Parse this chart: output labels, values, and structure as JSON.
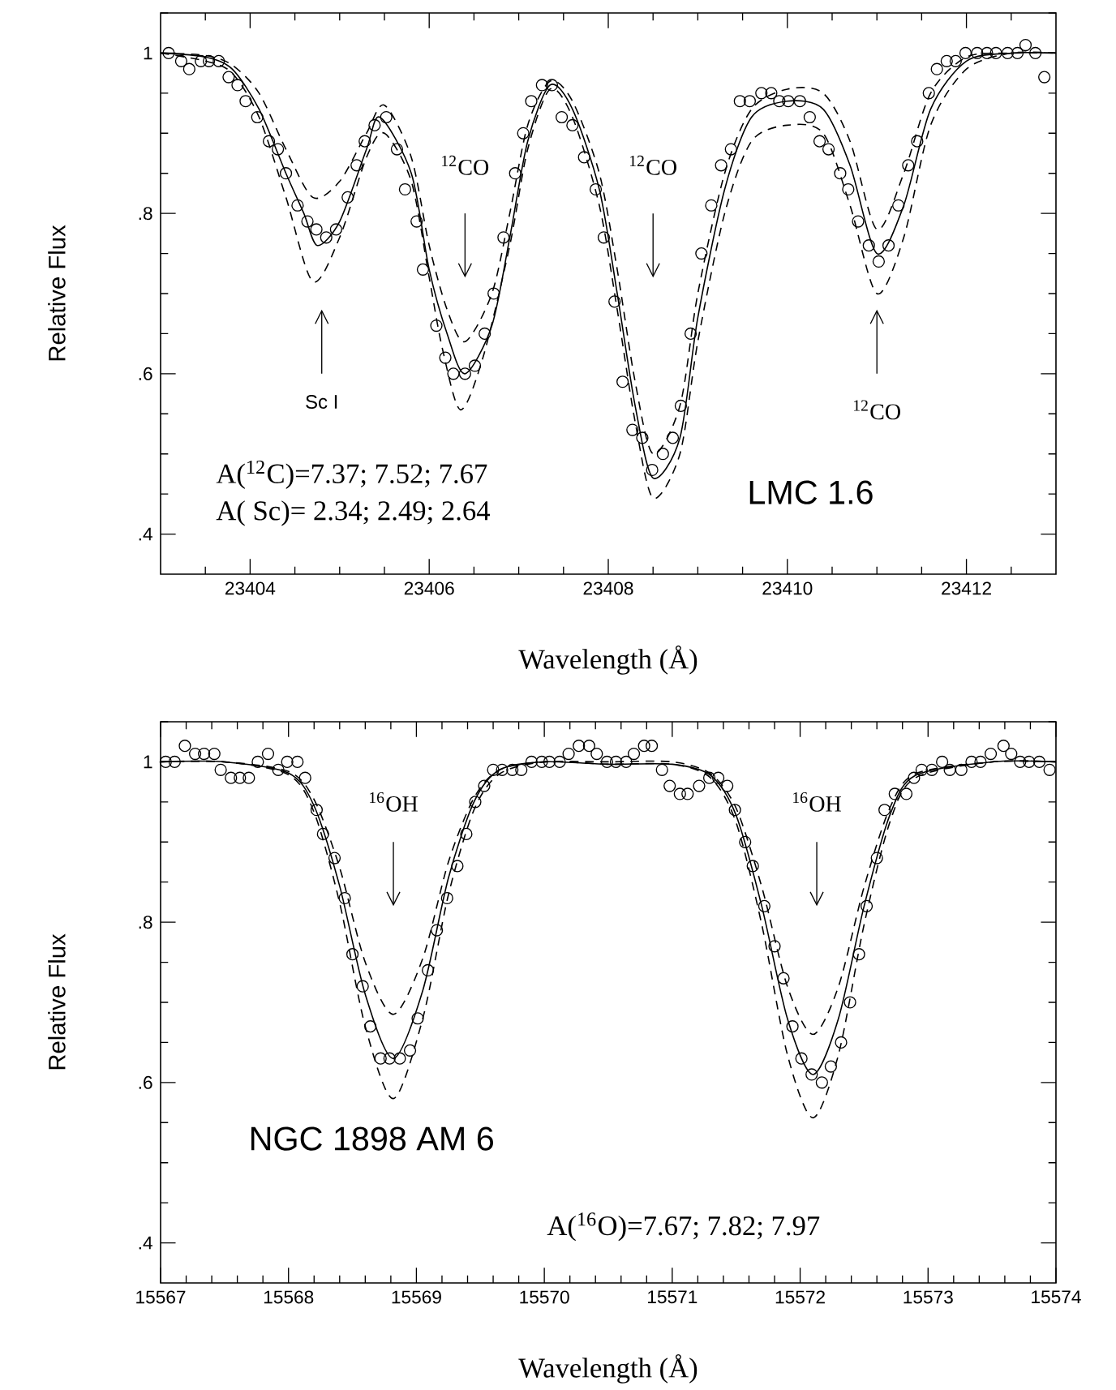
{
  "chart_data": [
    {
      "type": "scatter",
      "xlabel": "Wavelength (Å)",
      "ylabel": "Relative Flux",
      "xlim": [
        23403,
        23413
      ],
      "ylim": [
        0.35,
        1.05
      ],
      "xticks": [
        {
          "value": 23403.5,
          "label": null
        },
        23404,
        {
          "value": 23404.5,
          "label": null
        },
        {
          "value": 23405,
          "label": null
        },
        {
          "value": 23405.5,
          "label": null
        },
        23406,
        {
          "value": 23406.5,
          "label": null
        },
        {
          "value": 23407,
          "label": null
        },
        {
          "value": 23407.5,
          "label": null
        },
        23408,
        {
          "value": 23408.5,
          "label": null
        },
        {
          "value": 23409,
          "label": null
        },
        {
          "value": 23409.5,
          "label": null
        },
        23410,
        {
          "value": 23410.5,
          "label": null
        },
        {
          "value": 23411,
          "label": null
        },
        {
          "value": 23411.5,
          "label": null
        },
        23412,
        {
          "value": 23412.5,
          "label": null
        }
      ],
      "yticks": [
        {
          "value": 0.4,
          "label": ".4"
        },
        {
          "value": 0.45,
          "label": null
        },
        {
          "value": 0.5,
          "label": null
        },
        {
          "value": 0.55,
          "label": null
        },
        {
          "value": 0.6,
          "label": ".6"
        },
        {
          "value": 0.65,
          "label": null
        },
        {
          "value": 0.7,
          "label": null
        },
        {
          "value": 0.75,
          "label": null
        },
        {
          "value": 0.8,
          "label": ".8"
        },
        {
          "value": 0.85,
          "label": null
        },
        {
          "value": 0.9,
          "label": null
        },
        {
          "value": 0.95,
          "label": null
        },
        1,
        {
          "value": 1.05,
          "label": null
        }
      ],
      "annotations": [
        "Sc I",
        "$^{12}$CO",
        "$^{12}$CO",
        "$^{12}$CO",
        "A($^{12}$C)=7.37;  7.52;  7.67",
        "A( Sc)=  2.34;  2.49;  2.64",
        "LMC 1.6"
      ],
      "series": [
        {
          "marker": "circle",
          "color": "#000000",
          "x": [
            23403.09,
            23403.23,
            23403.32,
            23403.45,
            23403.54,
            23403.65,
            23403.76,
            23403.86,
            23403.95,
            23404.08,
            23404.21,
            23404.31,
            23404.4,
            23404.53,
            23404.64,
            23404.74,
            23404.85,
            23404.96,
            23405.09,
            23405.19,
            23405.28,
            23405.39,
            23405.52,
            23405.64,
            23405.73,
            23405.86,
            23405.93,
            23406.08,
            23406.18,
            23406.27,
            23406.4,
            23406.51,
            23406.62,
            23406.72,
            23406.83,
            23406.96,
            23407.05,
            23407.14,
            23407.26,
            23407.37,
            23407.48,
            23407.6,
            23407.73,
            23407.86,
            23407.95,
            23408.07,
            23408.16,
            23408.27,
            23408.38,
            23408.49,
            23408.61,
            23408.72,
            23408.81,
            23408.92,
            23409.04,
            23409.15,
            23409.26,
            23409.37,
            23409.47,
            23409.58,
            23409.71,
            23409.82,
            23409.91,
            23410.01,
            23410.14,
            23410.25,
            23410.36,
            23410.46,
            23410.59,
            23410.68,
            23410.79,
            23410.91,
            23411.02,
            23411.13,
            23411.24,
            23411.35,
            23411.45,
            23411.58,
            23411.67,
            23411.78,
            23411.88,
            23411.99,
            23412.12,
            23412.23,
            23412.33,
            23412.46,
            23412.57,
            23412.66,
            23412.77,
            23412.87
          ],
          "values": [
            1.0,
            0.99,
            0.98,
            0.99,
            0.99,
            0.99,
            0.97,
            0.96,
            0.94,
            0.92,
            0.89,
            0.88,
            0.85,
            0.81,
            0.79,
            0.78,
            0.77,
            0.78,
            0.82,
            0.86,
            0.89,
            0.91,
            0.92,
            0.88,
            0.83,
            0.79,
            0.73,
            0.66,
            0.62,
            0.6,
            0.6,
            0.61,
            0.65,
            0.7,
            0.77,
            0.85,
            0.9,
            0.94,
            0.96,
            0.96,
            0.92,
            0.91,
            0.87,
            0.83,
            0.77,
            0.69,
            0.59,
            0.53,
            0.52,
            0.48,
            0.5,
            0.52,
            0.56,
            0.65,
            0.75,
            0.81,
            0.86,
            0.88,
            0.94,
            0.94,
            0.95,
            0.95,
            0.94,
            0.94,
            0.94,
            0.92,
            0.89,
            0.88,
            0.85,
            0.83,
            0.79,
            0.76,
            0.74,
            0.76,
            0.81,
            0.86,
            0.89,
            0.95,
            0.98,
            0.99,
            0.99,
            1.0,
            1.0,
            1.0,
            1.0,
            1.0,
            1.0,
            1.01,
            1.0,
            0.97
          ]
        },
        {
          "type": "line",
          "line_style": "solid",
          "color": "#000000",
          "x": [
            23403,
            23403.5,
            23403.8,
            23404.1,
            23404.4,
            23404.6,
            23404.75,
            23405.0,
            23405.3,
            23405.45,
            23405.8,
            23406.0,
            23406.2,
            23406.4,
            23406.7,
            23406.9,
            23407.1,
            23407.35,
            23407.6,
            23407.9,
            23408.1,
            23408.3,
            23408.5,
            23408.8,
            23409.0,
            23409.3,
            23409.6,
            23410.0,
            23410.4,
            23410.7,
            23411.0,
            23411.3,
            23411.6,
            23412.0,
            23412.5,
            23413
          ],
          "values": [
            1.0,
            0.995,
            0.98,
            0.93,
            0.85,
            0.8,
            0.76,
            0.79,
            0.88,
            0.92,
            0.85,
            0.73,
            0.65,
            0.6,
            0.66,
            0.77,
            0.89,
            0.96,
            0.93,
            0.83,
            0.7,
            0.56,
            0.47,
            0.52,
            0.67,
            0.83,
            0.92,
            0.94,
            0.93,
            0.86,
            0.75,
            0.81,
            0.93,
            0.99,
            1.0,
            1.0
          ]
        },
        {
          "type": "line",
          "line_style": "dashed",
          "color": "#000000",
          "x": [
            23403,
            23403.5,
            23403.8,
            23404.1,
            23404.4,
            23404.7,
            23405.0,
            23405.3,
            23405.5,
            23405.8,
            23406.0,
            23406.15,
            23406.35,
            23406.6,
            23406.9,
            23407.1,
            23407.35,
            23407.6,
            23407.9,
            23408.1,
            23408.3,
            23408.5,
            23408.8,
            23409.0,
            23409.3,
            23409.6,
            23410.0,
            23410.4,
            23410.7,
            23411.0,
            23411.3,
            23411.6,
            23412.0,
            23412.5,
            23413
          ],
          "values": [
            1.0,
            0.99,
            0.975,
            0.92,
            0.82,
            0.715,
            0.77,
            0.87,
            0.9,
            0.84,
            0.72,
            0.63,
            0.555,
            0.62,
            0.76,
            0.88,
            0.955,
            0.92,
            0.81,
            0.68,
            0.54,
            0.445,
            0.5,
            0.64,
            0.8,
            0.89,
            0.91,
            0.9,
            0.81,
            0.7,
            0.77,
            0.91,
            0.98,
            1.0,
            1.0
          ]
        },
        {
          "type": "line",
          "line_style": "dashed",
          "color": "#000000",
          "x": [
            23403,
            23403.5,
            23403.8,
            23404.1,
            23404.4,
            23404.7,
            23405.0,
            23405.3,
            23405.5,
            23405.8,
            23406.0,
            23406.2,
            23406.4,
            23406.7,
            23406.9,
            23407.1,
            23407.35,
            23407.6,
            23407.9,
            23408.1,
            23408.3,
            23408.5,
            23408.8,
            23409.0,
            23409.3,
            23409.6,
            23410.0,
            23410.4,
            23410.7,
            23411.0,
            23411.3,
            23411.6,
            23412.0,
            23412.5,
            23413
          ],
          "values": [
            1.0,
            0.997,
            0.985,
            0.95,
            0.88,
            0.82,
            0.84,
            0.9,
            0.935,
            0.87,
            0.76,
            0.68,
            0.64,
            0.7,
            0.8,
            0.91,
            0.965,
            0.94,
            0.85,
            0.73,
            0.59,
            0.5,
            0.56,
            0.7,
            0.85,
            0.93,
            0.955,
            0.95,
            0.89,
            0.78,
            0.85,
            0.95,
            0.995,
            1.0,
            1.0
          ]
        }
      ]
    },
    {
      "type": "scatter",
      "xlabel": "Wavelength (Å)",
      "ylabel": "Relative Flux",
      "xlim": [
        15567,
        15574
      ],
      "ylim": [
        0.35,
        1.05
      ],
      "xticks": [
        15567,
        {
          "value": 15567.2,
          "label": null
        },
        {
          "value": 15567.4,
          "label": null
        },
        {
          "value": 15567.6,
          "label": null
        },
        {
          "value": 15567.8,
          "label": null
        },
        15568,
        {
          "value": 15568.2,
          "label": null
        },
        {
          "value": 15568.4,
          "label": null
        },
        {
          "value": 15568.6,
          "label": null
        },
        {
          "value": 15568.8,
          "label": null
        },
        15569,
        {
          "value": 15569.2,
          "label": null
        },
        {
          "value": 15569.4,
          "label": null
        },
        {
          "value": 15569.6,
          "label": null
        },
        {
          "value": 15569.8,
          "label": null
        },
        15570,
        {
          "value": 15570.2,
          "label": null
        },
        {
          "value": 15570.4,
          "label": null
        },
        {
          "value": 15570.6,
          "label": null
        },
        {
          "value": 15570.8,
          "label": null
        },
        15571,
        {
          "value": 15571.2,
          "label": null
        },
        {
          "value": 15571.4,
          "label": null
        },
        {
          "value": 15571.6,
          "label": null
        },
        {
          "value": 15571.8,
          "label": null
        },
        15572,
        {
          "value": 15572.2,
          "label": null
        },
        {
          "value": 15572.4,
          "label": null
        },
        {
          "value": 15572.6,
          "label": null
        },
        {
          "value": 15572.8,
          "label": null
        },
        15573,
        {
          "value": 15573.2,
          "label": null
        },
        {
          "value": 15573.4,
          "label": null
        },
        {
          "value": 15573.6,
          "label": null
        },
        {
          "value": 15573.8,
          "label": null
        },
        15574
      ],
      "yticks": [
        {
          "value": 0.4,
          "label": ".4"
        },
        {
          "value": 0.45,
          "label": null
        },
        {
          "value": 0.5,
          "label": null
        },
        {
          "value": 0.55,
          "label": null
        },
        {
          "value": 0.6,
          "label": ".6"
        },
        {
          "value": 0.65,
          "label": null
        },
        {
          "value": 0.7,
          "label": null
        },
        {
          "value": 0.75,
          "label": null
        },
        {
          "value": 0.8,
          "label": ".8"
        },
        {
          "value": 0.85,
          "label": null
        },
        {
          "value": 0.9,
          "label": null
        },
        {
          "value": 0.95,
          "label": null
        },
        1,
        {
          "value": 1.05,
          "label": null
        }
      ],
      "annotations": [
        "$^{16}$OH",
        "$^{16}$OH",
        "A($^{16}$O)=7.67;  7.82;  7.97",
        "NGC 1898 AM 6"
      ],
      "series": [
        {
          "marker": "circle",
          "color": "#000000",
          "x": [
            15567.04,
            15567.11,
            15567.19,
            15567.27,
            15567.34,
            15567.42,
            15567.47,
            15567.55,
            15567.62,
            15567.69,
            15567.76,
            15567.84,
            15567.92,
            15567.99,
            15568.07,
            15568.13,
            15568.22,
            15568.27,
            15568.36,
            15568.44,
            15568.5,
            15568.58,
            15568.64,
            15568.72,
            15568.79,
            15568.87,
            15568.95,
            15569.01,
            15569.09,
            15569.16,
            15569.24,
            15569.32,
            15569.39,
            15569.46,
            15569.53,
            15569.6,
            15569.67,
            15569.75,
            15569.82,
            15569.9,
            15569.98,
            15570.04,
            15570.12,
            15570.19,
            15570.27,
            15570.35,
            15570.41,
            15570.49,
            15570.56,
            15570.64,
            15570.7,
            15570.78,
            15570.84,
            15570.92,
            15570.98,
            15571.06,
            15571.12,
            15571.21,
            15571.29,
            15571.36,
            15571.43,
            15571.49,
            15571.57,
            15571.63,
            15571.72,
            15571.8,
            15571.87,
            15571.94,
            15572.01,
            15572.09,
            15572.17,
            15572.24,
            15572.32,
            15572.39,
            15572.46,
            15572.52,
            15572.6,
            15572.66,
            15572.74,
            15572.83,
            15572.89,
            15572.95,
            15573.03,
            15573.11,
            15573.17,
            15573.26,
            15573.34,
            15573.41,
            15573.49,
            15573.59,
            15573.65,
            15573.72,
            15573.79,
            15573.87,
            15573.95
          ],
          "values": [
            1.0,
            1.0,
            1.02,
            1.01,
            1.01,
            1.01,
            0.99,
            0.98,
            0.98,
            0.98,
            1.0,
            1.01,
            0.99,
            1.0,
            1.0,
            0.98,
            0.94,
            0.91,
            0.88,
            0.83,
            0.76,
            0.72,
            0.67,
            0.63,
            0.63,
            0.63,
            0.64,
            0.68,
            0.74,
            0.79,
            0.83,
            0.87,
            0.91,
            0.95,
            0.97,
            0.99,
            0.99,
            0.99,
            0.99,
            1.0,
            1.0,
            1.0,
            1.0,
            1.01,
            1.02,
            1.02,
            1.01,
            1.0,
            1.0,
            1.0,
            1.01,
            1.02,
            1.02,
            0.99,
            0.97,
            0.96,
            0.96,
            0.97,
            0.98,
            0.98,
            0.97,
            0.94,
            0.9,
            0.87,
            0.82,
            0.77,
            0.73,
            0.67,
            0.63,
            0.61,
            0.6,
            0.62,
            0.65,
            0.7,
            0.76,
            0.82,
            0.88,
            0.94,
            0.96,
            0.96,
            0.98,
            0.99,
            0.99,
            1.0,
            0.99,
            0.99,
            1.0,
            1.0,
            1.01,
            1.02,
            1.01,
            1.0,
            1.0,
            1.0,
            0.99
          ]
        },
        {
          "type": "line",
          "line_style": "solid",
          "color": "#000000",
          "x": [
            15567,
            15567.5,
            15568.0,
            15568.2,
            15568.4,
            15568.6,
            15568.82,
            15569.05,
            15569.25,
            15569.45,
            15569.65,
            15570,
            15570.5,
            15571,
            15571.3,
            15571.5,
            15571.7,
            15571.9,
            15572.1,
            15572.3,
            15572.5,
            15572.7,
            15572.9,
            15573.5,
            15574
          ],
          "values": [
            1.0,
            1.0,
            0.986,
            0.945,
            0.845,
            0.71,
            0.63,
            0.715,
            0.855,
            0.95,
            0.99,
            1.0,
            0.997,
            0.997,
            0.983,
            0.933,
            0.82,
            0.68,
            0.61,
            0.68,
            0.82,
            0.933,
            0.983,
            1.0,
            1.0
          ]
        },
        {
          "type": "line",
          "line_style": "dashed",
          "color": "#000000",
          "x": [
            15567,
            15567.5,
            15568.0,
            15568.2,
            15568.4,
            15568.6,
            15568.82,
            15569.05,
            15569.25,
            15569.45,
            15569.65,
            15570,
            15570.5,
            15571,
            15571.3,
            15571.5,
            15571.7,
            15571.9,
            15572.1,
            15572.3,
            15572.5,
            15572.7,
            15572.9,
            15573.5,
            15574
          ],
          "values": [
            1.0,
            1.0,
            0.988,
            0.953,
            0.868,
            0.75,
            0.685,
            0.755,
            0.875,
            0.955,
            0.99,
            1.0,
            1.0,
            1.0,
            0.985,
            0.942,
            0.844,
            0.72,
            0.66,
            0.72,
            0.844,
            0.942,
            0.985,
            1.0,
            1.0
          ]
        },
        {
          "type": "line",
          "line_style": "dashed",
          "color": "#000000",
          "x": [
            15567,
            15567.5,
            15568.0,
            15568.2,
            15568.4,
            15568.6,
            15568.82,
            15569.05,
            15569.25,
            15569.45,
            15569.65,
            15570,
            15570.5,
            15571,
            15571.3,
            15571.5,
            15571.7,
            15571.9,
            15572.1,
            15572.3,
            15572.5,
            15572.7,
            15572.9,
            15573.5,
            15574
          ],
          "values": [
            1.0,
            1.0,
            0.984,
            0.937,
            0.824,
            0.67,
            0.58,
            0.68,
            0.834,
            0.94,
            0.985,
            1.0,
            0.997,
            0.997,
            0.98,
            0.924,
            0.797,
            0.635,
            0.556,
            0.635,
            0.797,
            0.924,
            0.98,
            1.0,
            1.0
          ]
        }
      ]
    }
  ]
}
